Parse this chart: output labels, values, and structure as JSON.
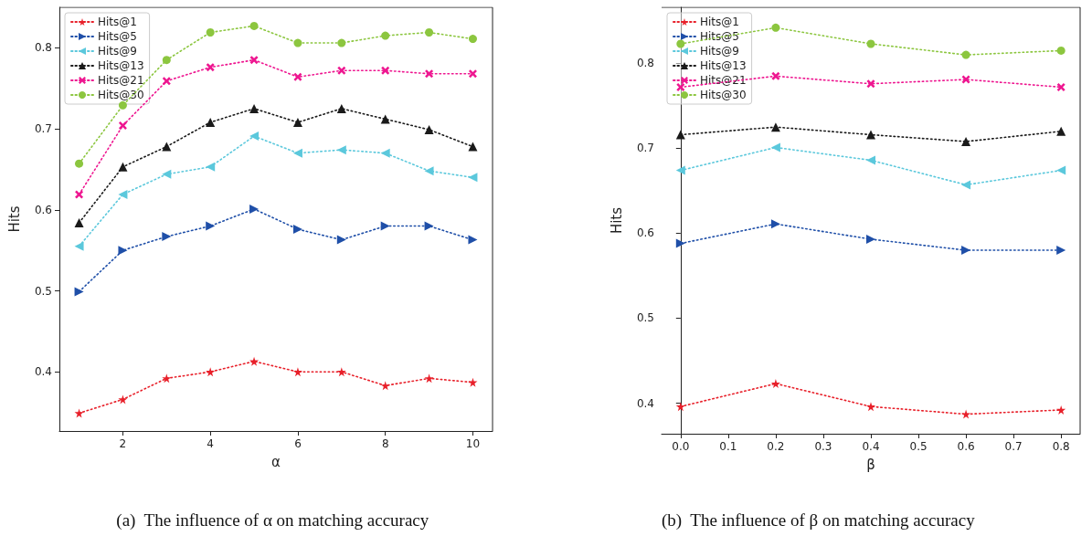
{
  "chart_data": [
    {
      "type": "line",
      "xlabel": "α",
      "ylabel": "Hits",
      "annotations": [
        "(a)  The influence of α on matching accuracy"
      ],
      "x": [
        1,
        2,
        3,
        4,
        5,
        6,
        7,
        8,
        9,
        10
      ],
      "xlim": [
        0.55,
        10.45
      ],
      "xticks": [
        2,
        4,
        6,
        8,
        10
      ],
      "ylim": [
        0.327,
        0.85
      ],
      "yticks": [
        0.4,
        0.5,
        0.6,
        0.7,
        0.8
      ],
      "legend": "top left",
      "line_style": "dotted",
      "grid": false,
      "series": [
        {
          "name": "Hits@1",
          "color": "#e8202a",
          "marker": "star",
          "values": [
            0.349,
            0.366,
            0.392,
            0.4,
            0.413,
            0.4,
            0.4,
            0.383,
            0.392,
            0.387
          ]
        },
        {
          "name": "Hits@5",
          "color": "#1f4fa8",
          "marker": "triangle-right",
          "values": [
            0.499,
            0.55,
            0.567,
            0.58,
            0.601,
            0.576,
            0.563,
            0.58,
            0.58,
            0.563
          ]
        },
        {
          "name": "Hits@9",
          "color": "#5bc8dc",
          "marker": "triangle-left",
          "values": [
            0.555,
            0.619,
            0.644,
            0.653,
            0.691,
            0.67,
            0.674,
            0.67,
            0.648,
            0.64
          ]
        },
        {
          "name": "Hits@13",
          "color": "#1a1a1a",
          "marker": "triangle",
          "values": [
            0.584,
            0.653,
            0.678,
            0.708,
            0.725,
            0.708,
            0.725,
            0.712,
            0.699,
            0.678
          ]
        },
        {
          "name": "Hits@21",
          "color": "#ee1690",
          "marker": "cross",
          "values": [
            0.619,
            0.704,
            0.759,
            0.776,
            0.785,
            0.764,
            0.772,
            0.772,
            0.768,
            0.768
          ]
        },
        {
          "name": "Hits@30",
          "color": "#8cc63f",
          "marker": "circle",
          "values": [
            0.657,
            0.729,
            0.785,
            0.819,
            0.827,
            0.806,
            0.806,
            0.815,
            0.819,
            0.811
          ]
        }
      ]
    },
    {
      "type": "line",
      "xlabel": "β",
      "ylabel": "Hits",
      "annotations": [
        "(b)  The influence of β on matching accuracy"
      ],
      "x": [
        0,
        0.2,
        0.4,
        0.6,
        0.8
      ],
      "xlim": [
        -0.04,
        0.84
      ],
      "xticks": [
        "0.0",
        0.1,
        0.2,
        0.3,
        0.4,
        0.5,
        0.6,
        0.7,
        0.8
      ],
      "ylim": [
        0.364,
        0.866
      ],
      "yticks": [
        0.4,
        0.5,
        0.6,
        0.7,
        0.8
      ],
      "legend": "top left",
      "line_style": "dotted",
      "grid": false,
      "series": [
        {
          "name": "Hits@1",
          "color": "#e8202a",
          "marker": "star",
          "values": [
            0.396,
            0.423,
            0.396,
            0.387,
            0.392
          ]
        },
        {
          "name": "Hits@5",
          "color": "#1f4fa8",
          "marker": "triangle-right",
          "values": [
            0.588,
            0.611,
            0.593,
            0.58,
            0.58
          ]
        },
        {
          "name": "Hits@9",
          "color": "#5bc8dc",
          "marker": "triangle-left",
          "values": [
            0.674,
            0.701,
            0.686,
            0.657,
            0.674
          ]
        },
        {
          "name": "Hits@13",
          "color": "#1a1a1a",
          "marker": "triangle",
          "values": [
            0.716,
            0.725,
            0.716,
            0.708,
            0.72
          ]
        },
        {
          "name": "Hits@21",
          "color": "#ee1690",
          "marker": "cross",
          "values": [
            0.772,
            0.785,
            0.776,
            0.781,
            0.772
          ]
        },
        {
          "name": "Hits@30",
          "color": "#8cc63f",
          "marker": "circle",
          "values": [
            0.823,
            0.842,
            0.823,
            0.81,
            0.815
          ]
        }
      ]
    }
  ]
}
